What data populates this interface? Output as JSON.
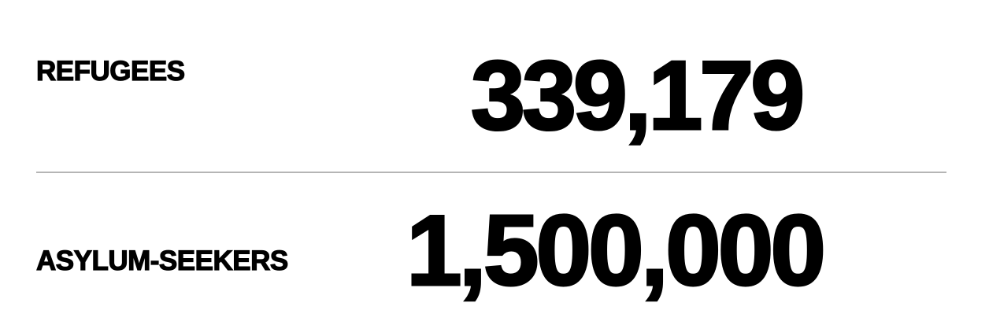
{
  "stats": [
    {
      "label": "REFUGEES",
      "value": "339,179"
    },
    {
      "label": "ASYLUM-SEEKERS",
      "value": "1,500,000"
    }
  ],
  "colors": {
    "text": "#000000",
    "divider": "#b5b5b5",
    "background": "#ffffff"
  }
}
